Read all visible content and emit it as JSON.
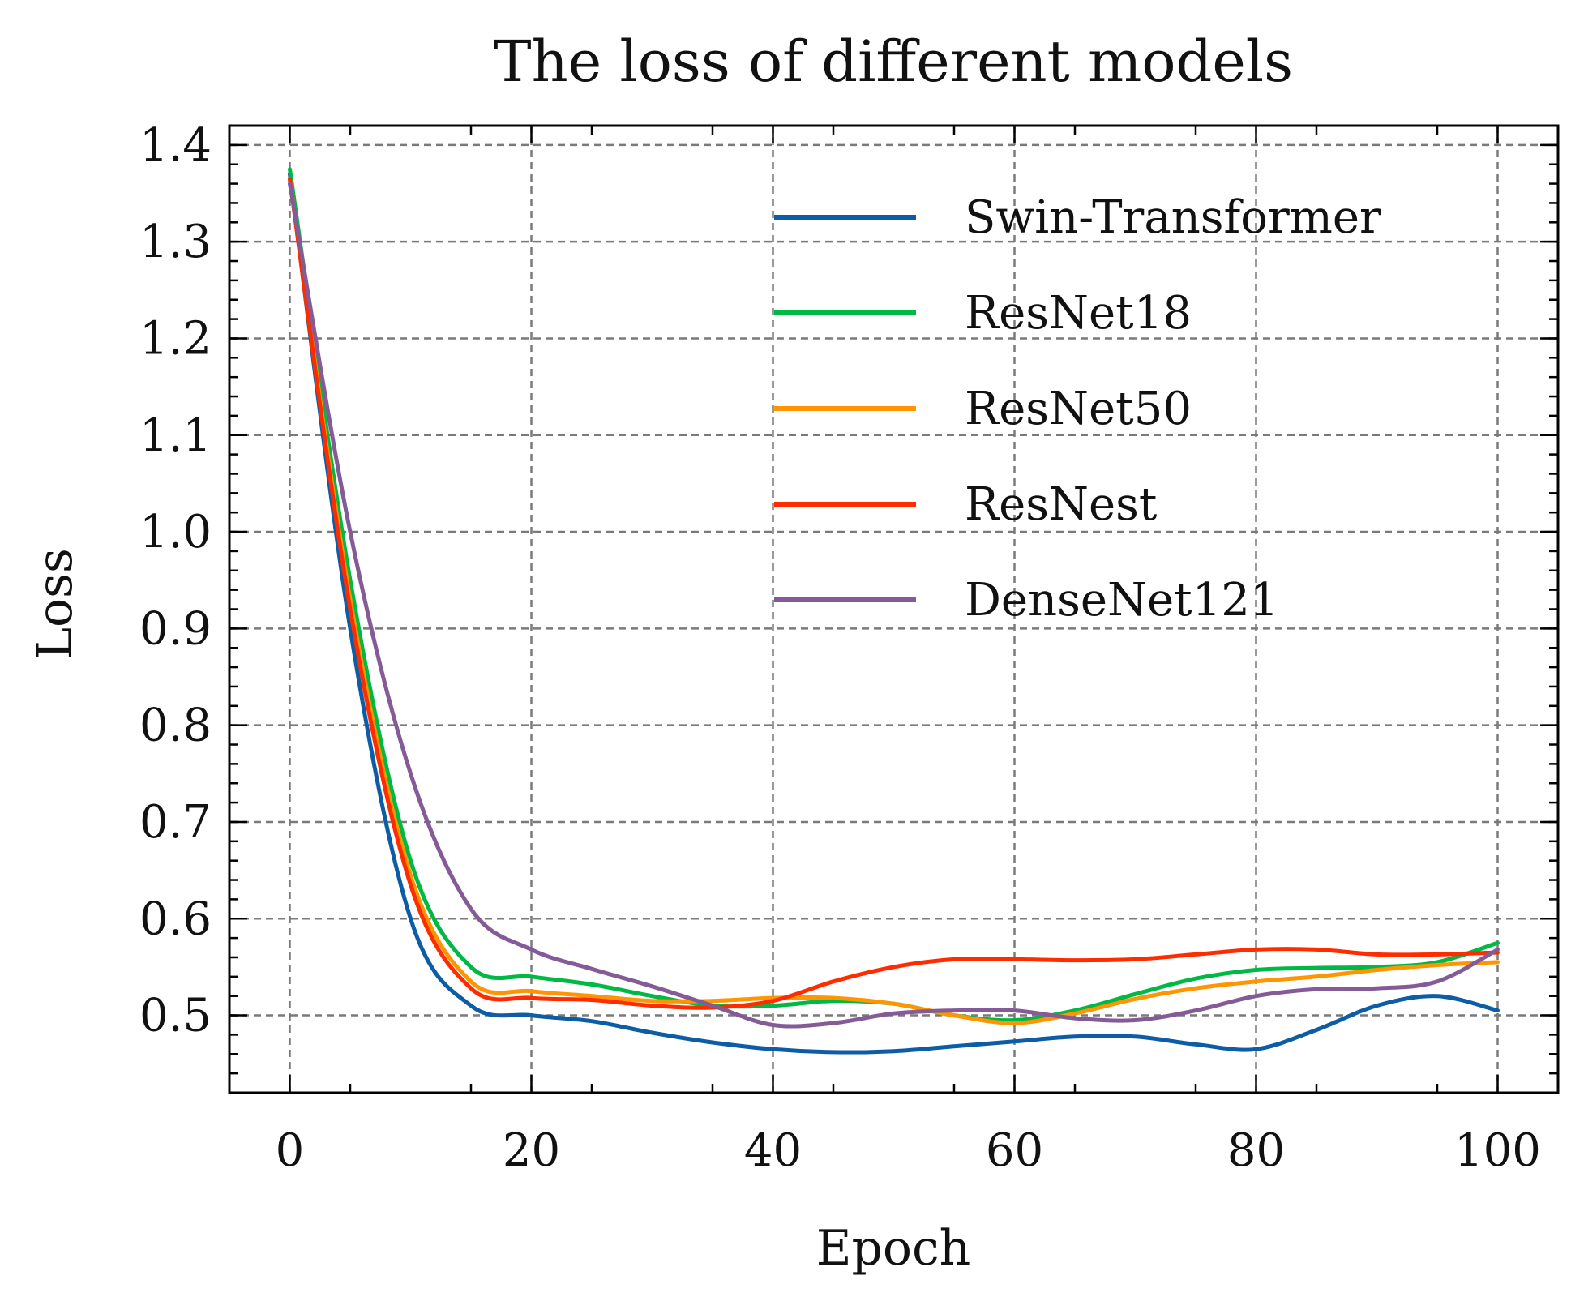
{
  "chart_data": {
    "type": "line",
    "title": "The loss of different models",
    "xlabel": "Epoch",
    "ylabel": "Loss",
    "xlim": [
      -5,
      105
    ],
    "ylim": [
      0.42,
      1.42
    ],
    "xticks": [
      0,
      20,
      40,
      60,
      80,
      100
    ],
    "xtick_labels": [
      "0",
      "20",
      "40",
      "60",
      "80",
      "100"
    ],
    "yticks": [
      0.5,
      0.6,
      0.7,
      0.8,
      0.9,
      1.0,
      1.1,
      1.2,
      1.3,
      1.4
    ],
    "ytick_labels": [
      "0.5",
      "0.6",
      "0.7",
      "0.8",
      "0.9",
      "1.0",
      "1.1",
      "1.2",
      "1.3",
      "1.4"
    ],
    "grid": true,
    "legend_position": "top-right",
    "x": [
      0,
      5,
      10,
      15,
      20,
      25,
      30,
      35,
      40,
      45,
      50,
      55,
      60,
      65,
      70,
      75,
      80,
      85,
      90,
      95,
      100
    ],
    "series": [
      {
        "name": "Swin-Transformer",
        "color": "#0C5DA5",
        "values": [
          1.37,
          0.9,
          0.6,
          0.51,
          0.5,
          0.494,
          0.482,
          0.472,
          0.465,
          0.462,
          0.463,
          0.468,
          0.473,
          0.478,
          0.478,
          0.47,
          0.465,
          0.485,
          0.51,
          0.52,
          0.505
        ]
      },
      {
        "name": "ResNet18",
        "color": "#00B945",
        "values": [
          1.375,
          0.95,
          0.66,
          0.55,
          0.54,
          0.532,
          0.52,
          0.51,
          0.51,
          0.515,
          0.512,
          0.5,
          0.495,
          0.505,
          0.522,
          0.538,
          0.547,
          0.549,
          0.55,
          0.555,
          0.575
        ]
      },
      {
        "name": "ResNet50",
        "color": "#FF9500",
        "values": [
          1.365,
          0.93,
          0.645,
          0.535,
          0.525,
          0.52,
          0.515,
          0.515,
          0.518,
          0.518,
          0.512,
          0.5,
          0.492,
          0.502,
          0.517,
          0.528,
          0.535,
          0.54,
          0.547,
          0.552,
          0.555
        ]
      },
      {
        "name": "ResNest",
        "color": "#FF2C00",
        "values": [
          1.365,
          0.92,
          0.635,
          0.528,
          0.518,
          0.516,
          0.51,
          0.508,
          0.515,
          0.535,
          0.55,
          0.558,
          0.558,
          0.557,
          0.558,
          0.563,
          0.568,
          0.568,
          0.563,
          0.563,
          0.565
        ]
      },
      {
        "name": "DenseNet121",
        "color": "#845B97",
        "values": [
          1.36,
          1.0,
          0.75,
          0.61,
          0.568,
          0.548,
          0.53,
          0.51,
          0.49,
          0.492,
          0.502,
          0.505,
          0.505,
          0.497,
          0.495,
          0.505,
          0.52,
          0.527,
          0.528,
          0.535,
          0.568
        ]
      }
    ]
  }
}
